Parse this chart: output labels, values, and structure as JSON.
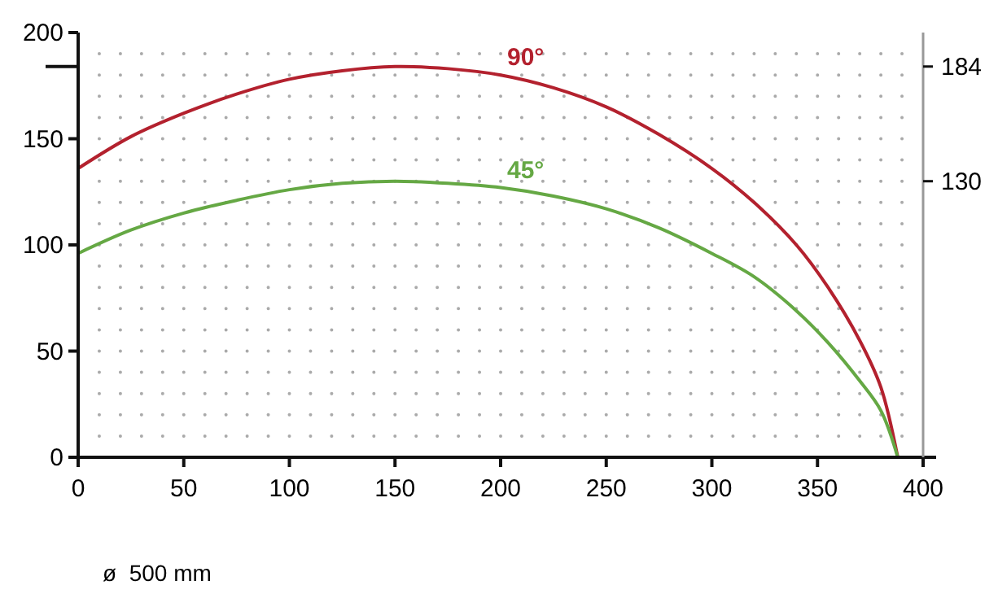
{
  "chart_data": {
    "type": "line",
    "x": [
      0,
      25,
      50,
      75,
      100,
      125,
      150,
      175,
      200,
      225,
      250,
      275,
      300,
      320,
      340,
      355,
      370,
      380,
      388
    ],
    "series": [
      {
        "name": "90°",
        "color": "#b3212e",
        "values": [
          136,
          151,
          162,
          171,
          178,
          182,
          184,
          183,
          180,
          174,
          165,
          152,
          136,
          120,
          100,
          80,
          55,
          33,
          0
        ]
      },
      {
        "name": "45°",
        "color": "#65a844",
        "values": [
          96,
          107,
          115,
          121,
          126,
          129,
          130,
          129,
          127,
          123,
          117,
          108,
          96,
          85,
          69,
          54,
          36,
          22,
          0
        ]
      }
    ],
    "xlim": [
      0,
      400
    ],
    "xticks": [
      0,
      50,
      100,
      150,
      200,
      250,
      300,
      350,
      400
    ],
    "ylim": [
      0,
      200
    ],
    "yticks": [
      0,
      50,
      100,
      150,
      200,
      {
        "value": 184,
        "label": null
      }
    ],
    "y2lim": [
      0,
      200
    ],
    "y2ticks": [
      130,
      184
    ],
    "grid": true,
    "line_style": "solid",
    "marker": "none",
    "annotations": [
      "ø  500 mm"
    ]
  }
}
